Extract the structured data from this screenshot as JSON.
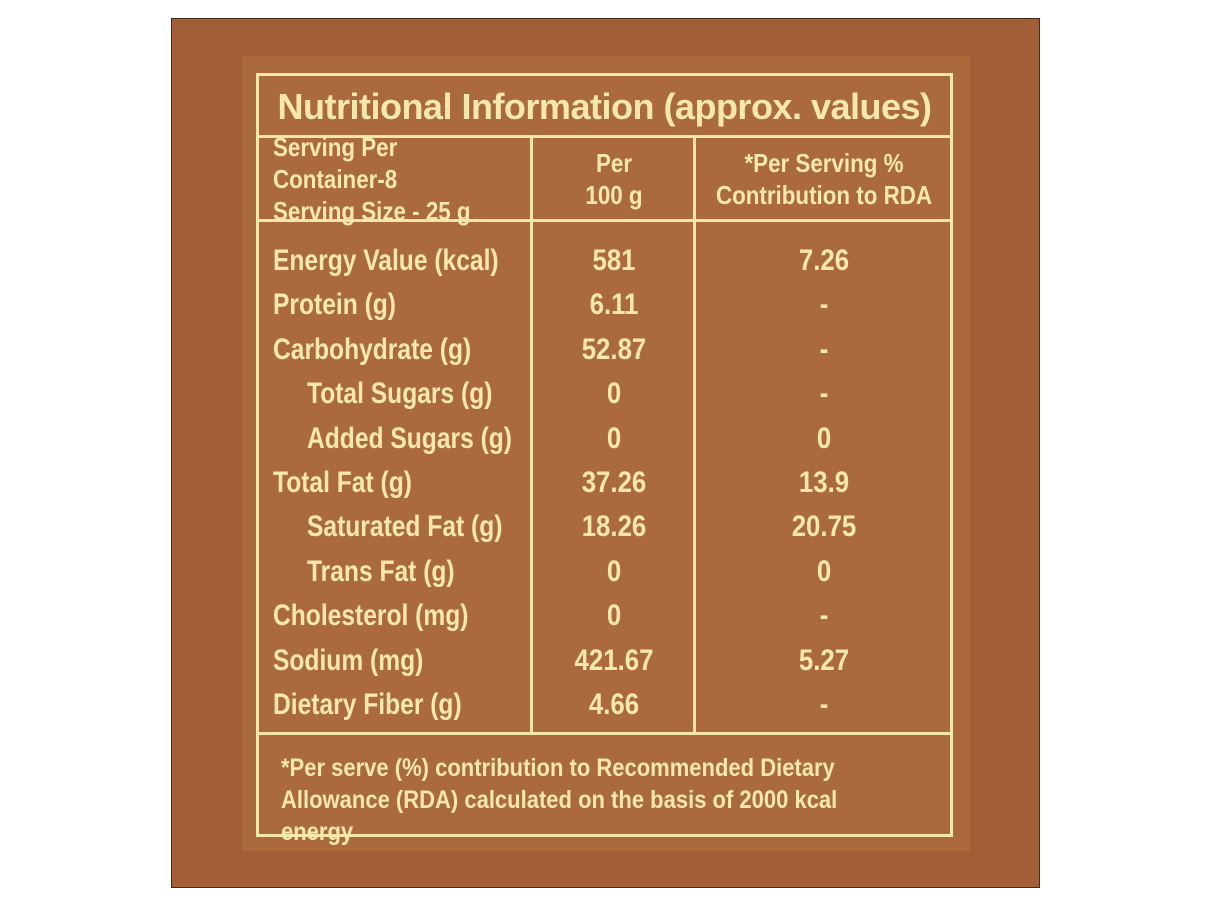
{
  "label": {
    "title": "Nutritional Information (approx. values)",
    "header": {
      "col1_line1": "Serving Per Container-8",
      "col1_line2": "Serving Size - 25 g",
      "col2_line1": "Per",
      "col2_line2": "100 g",
      "col3_line1": "*Per Serving %",
      "col3_line2": "Contribution to RDA"
    },
    "rows": [
      {
        "name": "Energy Value (kcal)",
        "per100g": "581",
        "rda": "7.26",
        "indent": false
      },
      {
        "name": "Protein (g)",
        "per100g": "6.11",
        "rda": "-",
        "indent": false
      },
      {
        "name": "Carbohydrate (g)",
        "per100g": "52.87",
        "rda": "-",
        "indent": false
      },
      {
        "name": "Total Sugars (g)",
        "per100g": "0",
        "rda": "-",
        "indent": true
      },
      {
        "name": "Added Sugars (g)",
        "per100g": "0",
        "rda": "0",
        "indent": true
      },
      {
        "name": "Total Fat (g)",
        "per100g": "37.26",
        "rda": "13.9",
        "indent": false
      },
      {
        "name": "Saturated Fat (g)",
        "per100g": "18.26",
        "rda": "20.75",
        "indent": true
      },
      {
        "name": "Trans Fat (g)",
        "per100g": "0",
        "rda": "0",
        "indent": true
      },
      {
        "name": "Cholesterol (mg)",
        "per100g": "0",
        "rda": "-",
        "indent": false
      },
      {
        "name": "Sodium (mg)",
        "per100g": "421.67",
        "rda": "5.27",
        "indent": false
      },
      {
        "name": "Dietary Fiber (g)",
        "per100g": "4.66",
        "rda": "-",
        "indent": false
      }
    ],
    "footnote_line1": "*Per serve (%) contribution to Recommended Dietary",
    "footnote_line2": "Allowance (RDA) calculated on the basis of 2000 kcal energy"
  },
  "colors": {
    "frame": "#a25e37",
    "paper": "#ab6a3b",
    "text": "#f6e8ad"
  }
}
